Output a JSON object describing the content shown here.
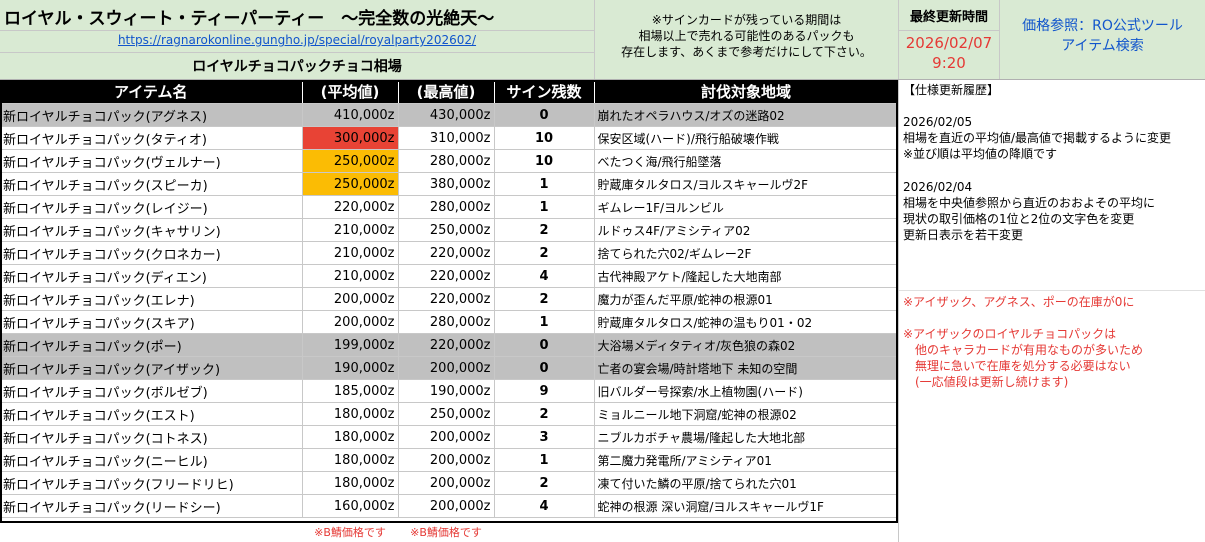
{
  "header": {
    "title": "ロイヤル・スウィート・ティーパーティー　～完全数の光絶天～",
    "url": "https://ragnarokonline.gungho.jp/special/royalparty202602/",
    "subtitle": "ロイヤルチョコパックチョコ相場",
    "notice": [
      "※サインカードが残っている期間は",
      "相場以上で売れる可能性のあるパックも",
      "存在します、あくまで参考だけにして下さい。"
    ],
    "updated_label": "最終更新時間",
    "updated_date": "2026/02/07",
    "updated_time": "9:20",
    "price_ref": [
      "価格参照：RO公式ツール",
      "アイテム検索"
    ]
  },
  "table": {
    "headers": [
      "アイテム名",
      "(平均値)",
      "(最高値)",
      "サイン残数",
      "討伐対象地域"
    ],
    "rows": [
      {
        "name": "新ロイヤルチョコパック(アグネス)",
        "avg": "410,000z",
        "max": "430,000z",
        "sign": "0",
        "area": "崩れたオペラハウス/オズの迷路02",
        "grey": true
      },
      {
        "name": "新ロイヤルチョコパック(タティオ)",
        "avg": "300,000z",
        "max": "310,000z",
        "sign": "10",
        "area": "保安区域(ハード)/飛行船破壊作戦",
        "hl": "red"
      },
      {
        "name": "新ロイヤルチョコパック(ヴェルナー)",
        "avg": "250,000z",
        "max": "280,000z",
        "sign": "10",
        "area": "べたつく海/飛行船墜落",
        "hl": "orange"
      },
      {
        "name": "新ロイヤルチョコパック(スピーカ)",
        "avg": "250,000z",
        "max": "380,000z",
        "sign": "1",
        "area": "貯蔵庫タルタロス/ヨルスキャールヴ2F",
        "hl": "orange"
      },
      {
        "name": "新ロイヤルチョコパック(レイジー)",
        "avg": "220,000z",
        "max": "280,000z",
        "sign": "1",
        "area": "ギムレー1F/ヨルンビル"
      },
      {
        "name": "新ロイヤルチョコパック(キャサリン)",
        "avg": "210,000z",
        "max": "250,000z",
        "sign": "2",
        "area": "ルドゥス4F/アミシティア02"
      },
      {
        "name": "新ロイヤルチョコパック(クロネカー)",
        "avg": "210,000z",
        "max": "220,000z",
        "sign": "2",
        "area": "捨てられた穴02/ギムレー2F"
      },
      {
        "name": "新ロイヤルチョコパック(ディエン)",
        "avg": "210,000z",
        "max": "220,000z",
        "sign": "4",
        "area": "古代神殿アケト/隆起した大地南部"
      },
      {
        "name": "新ロイヤルチョコパック(エレナ)",
        "avg": "200,000z",
        "max": "220,000z",
        "sign": "2",
        "area": "魔力が歪んだ平原/蛇神の根源01"
      },
      {
        "name": "新ロイヤルチョコパック(スキア)",
        "avg": "200,000z",
        "max": "280,000z",
        "sign": "1",
        "area": "貯蔵庫タルタロス/蛇神の温もり01・02"
      },
      {
        "name": "新ロイヤルチョコパック(ポー)",
        "avg": "199,000z",
        "max": "220,000z",
        "sign": "0",
        "area": "大浴場メディタティオ/灰色狼の森02",
        "grey": true
      },
      {
        "name": "新ロイヤルチョコパック(アイザック)",
        "avg": "190,000z",
        "max": "200,000z",
        "sign": "0",
        "area": "亡者の宴会場/時計塔地下 未知の空間",
        "grey": true
      },
      {
        "name": "新ロイヤルチョコパック(ボルゼブ)",
        "avg": "185,000z",
        "max": "190,000z",
        "sign": "9",
        "area": "旧バルダー号探索/水上植物園(ハード)"
      },
      {
        "name": "新ロイヤルチョコパック(エスト)",
        "avg": "180,000z",
        "max": "250,000z",
        "sign": "2",
        "area": "ミョルニール地下洞窟/蛇神の根源02"
      },
      {
        "name": "新ロイヤルチョコパック(コトネス)",
        "avg": "180,000z",
        "max": "200,000z",
        "sign": "3",
        "area": "ニブルカボチャ農場/隆起した大地北部"
      },
      {
        "name": "新ロイヤルチョコパック(ニーヒル)",
        "avg": "180,000z",
        "max": "200,000z",
        "sign": "1",
        "area": "第二魔力発電所/アミシティア01"
      },
      {
        "name": "新ロイヤルチョコパック(フリードリヒ)",
        "avg": "180,000z",
        "max": "200,000z",
        "sign": "2",
        "area": "凍て付いた鱗の平原/捨てられた穴01"
      },
      {
        "name": "新ロイヤルチョコパック(リードシー)",
        "avg": "160,000z",
        "max": "200,000z",
        "sign": "4",
        "area": "蛇神の根源 深い洞窟/ヨルスキャールヴ1F"
      }
    ],
    "footnotes": [
      "※B鯖価格です",
      "※B鯖価格です"
    ]
  },
  "sidebar": {
    "history_title": "【仕様更新履歴】",
    "entry1_date": "2026/02/05",
    "entry1_lines": [
      "相場を直近の平均値/最高値で掲載するように変更",
      "※並び順は平均値の降順です"
    ],
    "entry2_date": "2026/02/04",
    "entry2_lines": [
      "相場を中央値参照から直近のおおよその平均に",
      "現状の取引価格の1位と2位の文字色を変更",
      "更新日表示を若干変更"
    ],
    "note1": "※アイザック、アグネス、ポーの在庫が0に",
    "note2_lines": [
      "※アイザックのロイヤルチョコパックは",
      "　他のキャラカードが有用なものが多いため",
      "　無理に急いで在庫を処分する必要はない",
      "　(一応値段は更新し続けます)"
    ]
  },
  "colors": {
    "header_bg": "#d9ead3",
    "red_highlight": "#e84335",
    "orange_highlight": "#fbbc04",
    "sold_out_grey": "#c0c0c0",
    "link_blue": "#1155cc",
    "alert_red": "#e53935"
  }
}
